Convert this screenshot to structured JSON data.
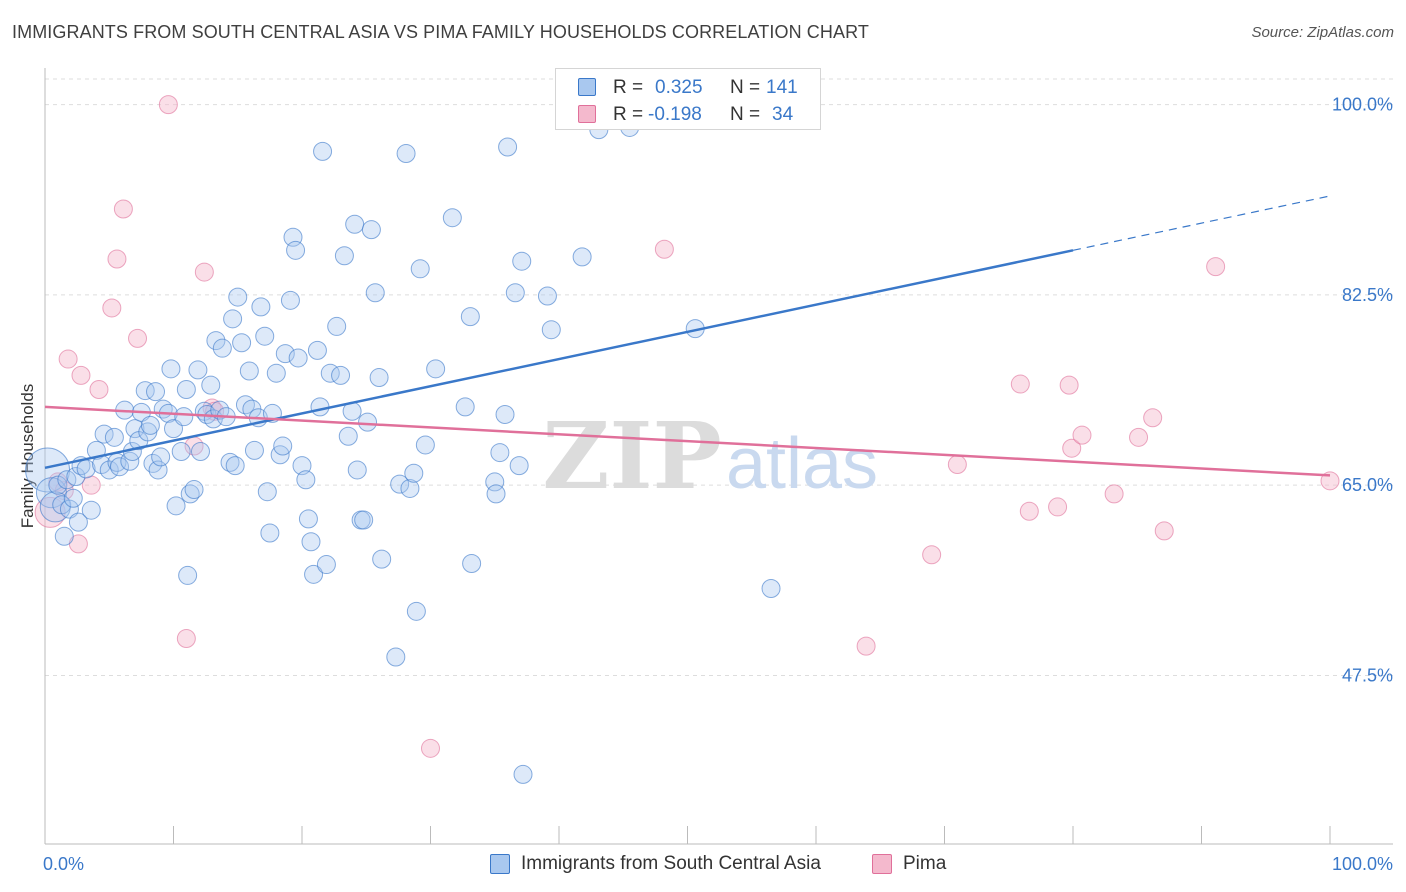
{
  "title": "IMMIGRANTS FROM SOUTH CENTRAL ASIA VS PIMA FAMILY HOUSEHOLDS CORRELATION CHART",
  "source": "Source: ZipAtlas.com",
  "watermark": {
    "zip": "ZIP",
    "atlas": "atlas"
  },
  "colors": {
    "blue": "#3a78c9",
    "blue_fill": "#a9c8ef",
    "pink": "#e0709a",
    "pink_fill": "#f4b9cd",
    "grid": "#dddddd",
    "axis_text": "#3a78c9"
  },
  "legend": {
    "r_label": "R =",
    "n_label": "N =",
    "blue": {
      "r": "0.325",
      "n": "141"
    },
    "pink": {
      "r": "-0.198",
      "n": "34"
    }
  },
  "chart_data": {
    "type": "scatter",
    "title": "IMMIGRANTS FROM SOUTH CENTRAL ASIA VS PIMA FAMILY HOUSEHOLDS CORRELATION CHART",
    "xlabel": "",
    "ylabel": "Family Households",
    "xlim": [
      0,
      100
    ],
    "ylim": [
      32,
      103
    ],
    "x_tick_labels": [
      "0.0%",
      "100.0%"
    ],
    "y_ticks": [
      47.5,
      65.0,
      82.5,
      100.0
    ],
    "y_tick_labels": [
      "47.5%",
      "65.0%",
      "82.5%",
      "100.0%"
    ],
    "series": [
      {
        "name": "Immigrants from South Central Asia",
        "color": "#3a78c9",
        "trend": {
          "x": [
            0,
            80
          ],
          "y": [
            66.6,
            86.6
          ],
          "dashed_to": [
            100,
            91.6
          ]
        },
        "points": [
          [
            0.2,
            66.4,
            3
          ],
          [
            0.5,
            64.3,
            2
          ],
          [
            0.8,
            63.0,
            2
          ],
          [
            1.0,
            65.0,
            1
          ],
          [
            1.3,
            63.2,
            1
          ],
          [
            1.5,
            60.3,
            1
          ],
          [
            1.7,
            65.5,
            1
          ],
          [
            1.9,
            62.8,
            1
          ],
          [
            2.2,
            63.8,
            1
          ],
          [
            2.4,
            65.8,
            1
          ],
          [
            2.6,
            61.6,
            1
          ],
          [
            2.8,
            66.8,
            1
          ],
          [
            3.2,
            66.5,
            1
          ],
          [
            3.6,
            62.7,
            1
          ],
          [
            4.0,
            68.2,
            1
          ],
          [
            4.4,
            66.9,
            1
          ],
          [
            4.6,
            69.7,
            1
          ],
          [
            5.0,
            66.4,
            1
          ],
          [
            5.4,
            69.4,
            1
          ],
          [
            5.6,
            67.1,
            1
          ],
          [
            5.8,
            66.7,
            1
          ],
          [
            6.2,
            71.9,
            1
          ],
          [
            6.6,
            67.2,
            1
          ],
          [
            6.8,
            68.1,
            1
          ],
          [
            7.0,
            70.2,
            1
          ],
          [
            7.3,
            69.1,
            1
          ],
          [
            7.5,
            71.7,
            1
          ],
          [
            7.8,
            73.7,
            1
          ],
          [
            8.0,
            69.9,
            1
          ],
          [
            8.2,
            70.5,
            1
          ],
          [
            8.4,
            67.0,
            1
          ],
          [
            8.6,
            73.6,
            1
          ],
          [
            8.8,
            66.4,
            1
          ],
          [
            9.0,
            67.6,
            1
          ],
          [
            9.2,
            72.0,
            1
          ],
          [
            9.6,
            71.6,
            1
          ],
          [
            9.8,
            75.7,
            1
          ],
          [
            10.0,
            70.2,
            1
          ],
          [
            10.2,
            63.1,
            1
          ],
          [
            10.6,
            68.1,
            1
          ],
          [
            10.8,
            71.3,
            1
          ],
          [
            11.0,
            73.8,
            1
          ],
          [
            11.1,
            56.7,
            1
          ],
          [
            11.3,
            64.2,
            1
          ],
          [
            11.6,
            64.6,
            1
          ],
          [
            11.9,
            75.6,
            1
          ],
          [
            12.1,
            68.1,
            1
          ],
          [
            12.4,
            71.8,
            1
          ],
          [
            12.6,
            71.5,
            1
          ],
          [
            12.9,
            74.2,
            1
          ],
          [
            13.1,
            71.1,
            1
          ],
          [
            13.3,
            78.3,
            1
          ],
          [
            13.6,
            71.9,
            1
          ],
          [
            13.8,
            77.6,
            1
          ],
          [
            14.1,
            71.3,
            1
          ],
          [
            14.4,
            67.1,
            1
          ],
          [
            14.6,
            80.3,
            1
          ],
          [
            14.8,
            66.8,
            1
          ],
          [
            15.0,
            82.3,
            1
          ],
          [
            15.3,
            78.1,
            1
          ],
          [
            15.6,
            72.4,
            1
          ],
          [
            15.9,
            75.5,
            1
          ],
          [
            16.1,
            72.0,
            1
          ],
          [
            16.3,
            68.2,
            1
          ],
          [
            16.6,
            71.2,
            1
          ],
          [
            16.8,
            81.4,
            1
          ],
          [
            17.1,
            78.7,
            1
          ],
          [
            17.3,
            64.4,
            1
          ],
          [
            17.5,
            60.6,
            1
          ],
          [
            17.7,
            71.6,
            1
          ],
          [
            18.0,
            75.3,
            1
          ],
          [
            18.3,
            67.8,
            1
          ],
          [
            18.5,
            68.6,
            1
          ],
          [
            18.7,
            77.1,
            1
          ],
          [
            19.1,
            82.0,
            1
          ],
          [
            19.3,
            87.8,
            1
          ],
          [
            19.5,
            86.6,
            1
          ],
          [
            19.7,
            76.7,
            1
          ],
          [
            20.0,
            66.8,
            1
          ],
          [
            20.3,
            65.5,
            1
          ],
          [
            20.5,
            61.9,
            1
          ],
          [
            20.7,
            59.8,
            1
          ],
          [
            20.9,
            56.8,
            1
          ],
          [
            21.2,
            77.4,
            1
          ],
          [
            21.4,
            72.2,
            1
          ],
          [
            21.6,
            95.7,
            1
          ],
          [
            21.9,
            57.7,
            1
          ],
          [
            22.2,
            75.3,
            1
          ],
          [
            22.7,
            79.6,
            1
          ],
          [
            23.0,
            75.1,
            1
          ],
          [
            23.3,
            86.1,
            1
          ],
          [
            23.6,
            69.5,
            1
          ],
          [
            23.9,
            71.8,
            1
          ],
          [
            24.1,
            89.0,
            1
          ],
          [
            24.3,
            66.4,
            1
          ],
          [
            24.6,
            61.8,
            1
          ],
          [
            24.8,
            61.8,
            1
          ],
          [
            25.1,
            70.8,
            1
          ],
          [
            25.4,
            88.5,
            1
          ],
          [
            25.7,
            82.7,
            1
          ],
          [
            26.0,
            74.9,
            1
          ],
          [
            26.2,
            58.2,
            1
          ],
          [
            27.3,
            49.2,
            1
          ],
          [
            27.6,
            65.1,
            1
          ],
          [
            28.1,
            95.5,
            1
          ],
          [
            28.4,
            64.7,
            1
          ],
          [
            28.7,
            66.1,
            1
          ],
          [
            28.9,
            53.4,
            1
          ],
          [
            29.2,
            84.9,
            1
          ],
          [
            29.6,
            68.7,
            1
          ],
          [
            30.4,
            75.7,
            1
          ],
          [
            31.7,
            89.6,
            1
          ],
          [
            32.7,
            72.2,
            1
          ],
          [
            33.1,
            80.5,
            1
          ],
          [
            33.2,
            57.8,
            1
          ],
          [
            35.0,
            65.3,
            1
          ],
          [
            35.1,
            64.2,
            1
          ],
          [
            35.4,
            68.0,
            1
          ],
          [
            35.8,
            71.5,
            1
          ],
          [
            36.0,
            96.1,
            1
          ],
          [
            36.6,
            82.7,
            1
          ],
          [
            36.9,
            66.8,
            1
          ],
          [
            37.1,
            85.6,
            1
          ],
          [
            37.2,
            38.4,
            1
          ],
          [
            39.1,
            82.4,
            1
          ],
          [
            39.4,
            79.3,
            1
          ],
          [
            41.8,
            86.0,
            1
          ],
          [
            43.1,
            97.7,
            1
          ],
          [
            45.5,
            97.9,
            1
          ],
          [
            50.6,
            79.4,
            1
          ],
          [
            56.5,
            55.5,
            1
          ]
        ]
      },
      {
        "name": "Pima",
        "color": "#e0709a",
        "trend": {
          "x": [
            0,
            100
          ],
          "y": [
            72.2,
            65.9
          ]
        },
        "points": [
          [
            0.4,
            62.5,
            2
          ],
          [
            1.0,
            65.3,
            1
          ],
          [
            1.5,
            64.5,
            1
          ],
          [
            1.8,
            76.6,
            1
          ],
          [
            2.6,
            59.6,
            1
          ],
          [
            2.8,
            75.1,
            1
          ],
          [
            3.6,
            65.0,
            1
          ],
          [
            4.2,
            73.8,
            1
          ],
          [
            5.2,
            81.3,
            1
          ],
          [
            5.6,
            85.8,
            1
          ],
          [
            6.1,
            90.4,
            1
          ],
          [
            7.2,
            78.5,
            1
          ],
          [
            9.6,
            100.0,
            1
          ],
          [
            11.0,
            50.9,
            1
          ],
          [
            11.6,
            68.6,
            1
          ],
          [
            12.4,
            84.6,
            1
          ],
          [
            13.0,
            72.1,
            1
          ],
          [
            13.2,
            71.8,
            1
          ],
          [
            30.0,
            40.8,
            1
          ],
          [
            48.2,
            86.7,
            1
          ],
          [
            63.9,
            50.2,
            1
          ],
          [
            69.0,
            58.6,
            1
          ],
          [
            71.0,
            66.9,
            1
          ],
          [
            76.6,
            62.6,
            1
          ],
          [
            78.8,
            63.0,
            1
          ],
          [
            75.9,
            74.3,
            1
          ],
          [
            79.7,
            74.2,
            1
          ],
          [
            79.9,
            68.4,
            1
          ],
          [
            80.7,
            69.6,
            1
          ],
          [
            83.2,
            64.2,
            1
          ],
          [
            85.1,
            69.4,
            1
          ],
          [
            86.2,
            71.2,
            1
          ],
          [
            87.1,
            60.8,
            1
          ],
          [
            91.1,
            85.1,
            1
          ],
          [
            100.0,
            65.4,
            1
          ]
        ]
      }
    ]
  },
  "bottom_legend": {
    "blue_label": "Immigrants from South Central Asia",
    "pink_label": "Pima"
  }
}
